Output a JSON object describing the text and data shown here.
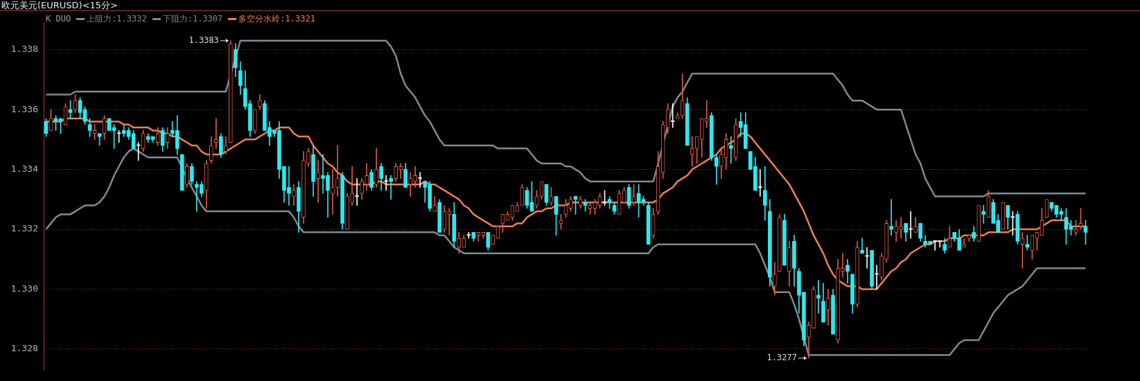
{
  "chart_data": {
    "type": "candlestick",
    "title": "欧元美元(EURUSD)<15分>",
    "legend_title": "K DUO",
    "legend": "top left",
    "grid": "y",
    "tick_labels": "y",
    "ylim": [
      1.3273,
      1.3389
    ],
    "yticks": [
      1.328,
      {
        "value": 1.33,
        "label": "1.330"
      },
      1.332,
      1.334,
      1.336,
      1.338
    ],
    "annotations": [
      "1.3383",
      "1.3277"
    ],
    "categories": [
      null,
      null,
      null,
      null,
      null,
      null,
      null,
      null,
      null,
      null,
      null,
      null,
      null,
      null,
      null,
      null,
      null,
      null,
      null,
      null,
      null,
      null,
      null,
      null,
      null,
      null,
      null,
      null,
      null,
      null,
      null,
      null,
      null,
      null,
      null,
      null,
      null,
      null,
      null,
      null,
      null,
      null,
      null,
      null,
      null,
      null,
      null,
      null,
      null,
      null,
      null,
      null,
      null,
      null,
      null,
      null,
      null,
      null,
      null,
      null,
      null,
      null,
      null,
      null,
      null,
      null,
      null,
      null,
      null,
      null,
      null,
      null,
      null,
      null,
      null,
      null,
      null,
      null,
      null,
      null,
      null,
      null,
      null,
      null,
      null,
      null,
      null,
      null,
      null,
      null,
      null,
      null,
      null,
      null,
      null,
      null,
      null,
      null,
      null,
      null,
      null,
      null,
      null,
      null,
      null,
      null,
      null,
      null,
      null,
      null,
      null,
      null,
      null,
      null,
      null,
      null,
      null,
      null,
      null,
      null,
      null,
      null,
      null,
      null,
      null,
      null,
      null,
      null,
      null,
      null,
      null,
      null,
      null,
      null,
      null,
      null,
      null,
      null,
      null,
      null,
      null,
      null,
      null,
      null,
      null,
      null,
      null,
      null,
      null,
      null,
      null,
      null,
      null,
      null,
      null,
      null,
      null,
      null,
      null,
      null,
      null,
      null,
      null,
      null,
      null,
      null,
      null,
      null,
      null,
      null,
      null,
      null,
      null,
      null,
      null,
      null,
      null,
      null,
      null,
      null,
      null,
      null,
      null,
      null,
      null,
      null,
      null,
      null,
      null,
      null,
      null,
      null,
      null,
      null,
      null,
      null,
      null,
      null,
      null,
      null,
      null,
      null,
      null,
      null,
      null,
      null,
      null,
      null,
      null,
      null,
      null,
      null,
      null,
      null,
      null
    ],
    "ohlc": [
      [
        1.3356,
        1.3357,
        1.3351,
        1.3352
      ],
      [
        1.3353,
        1.336,
        1.3353,
        1.3357
      ],
      [
        1.3357,
        1.3358,
        1.3353,
        1.3356
      ],
      [
        1.3357,
        1.3357,
        1.3352,
        1.3356
      ],
      [
        1.3355,
        1.3362,
        1.3355,
        1.3361
      ],
      [
        1.336,
        1.3363,
        1.3357,
        1.3359
      ],
      [
        1.336,
        1.3365,
        1.3359,
        1.3363
      ],
      [
        1.3363,
        1.3364,
        1.3357,
        1.3359
      ],
      [
        1.336,
        1.3361,
        1.3355,
        1.3356
      ],
      [
        1.3355,
        1.3357,
        1.3351,
        1.3353
      ],
      [
        1.3352,
        1.3355,
        1.335,
        1.3353
      ],
      [
        1.3352,
        1.3352,
        1.3348,
        1.3351
      ],
      [
        1.3352,
        1.3358,
        1.335,
        1.3357
      ],
      [
        1.3357,
        1.3357,
        1.3353,
        1.3353
      ],
      [
        1.3354,
        1.3355,
        1.3347,
        1.3353
      ],
      [
        1.3352,
        1.3353,
        1.3349,
        1.3352
      ],
      [
        1.3353,
        1.3355,
        1.3351,
        1.3352
      ],
      [
        1.3353,
        1.3354,
        1.335,
        1.3351
      ],
      [
        1.3352,
        1.3353,
        1.3347,
        1.3347
      ],
      [
        1.3348,
        1.3349,
        1.3343,
        1.3348
      ],
      [
        1.3347,
        1.3353,
        1.3346,
        1.3352
      ],
      [
        1.3351,
        1.3352,
        1.3349,
        1.335
      ],
      [
        1.3351,
        1.3351,
        1.3349,
        1.335
      ],
      [
        1.3349,
        1.3354,
        1.3348,
        1.3352
      ],
      [
        1.3353,
        1.3354,
        1.3346,
        1.3348
      ],
      [
        1.3349,
        1.3354,
        1.3347,
        1.3352
      ],
      [
        1.3353,
        1.3356,
        1.3351,
        1.3352
      ],
      [
        1.3353,
        1.3358,
        1.3345,
        1.3347
      ],
      [
        1.3345,
        1.3345,
        1.3333,
        1.3333
      ],
      [
        1.3335,
        1.3342,
        1.3334,
        1.3341
      ],
      [
        1.3341,
        1.3342,
        1.3335,
        1.3336
      ],
      [
        1.3335,
        1.3336,
        1.3326,
        1.3334
      ],
      [
        1.3335,
        1.3336,
        1.3331,
        1.3332
      ],
      [
        1.3333,
        1.3343,
        1.3327,
        1.3342
      ],
      [
        1.3343,
        1.3351,
        1.3342,
        1.3348
      ],
      [
        1.3349,
        1.3357,
        1.3347,
        1.335
      ],
      [
        1.3351,
        1.3352,
        1.3344,
        1.3345
      ],
      [
        1.3346,
        1.3351,
        1.3345,
        1.3348
      ],
      [
        1.3349,
        1.3383,
        1.3349,
        1.3382
      ],
      [
        1.338,
        1.3382,
        1.3371,
        1.3374
      ],
      [
        1.3373,
        1.3376,
        1.3365,
        1.3368
      ],
      [
        1.3367,
        1.3373,
        1.336,
        1.3361
      ],
      [
        1.3362,
        1.3363,
        1.3351,
        1.3353
      ],
      [
        1.3353,
        1.336,
        1.3352,
        1.336
      ],
      [
        1.3361,
        1.3365,
        1.336,
        1.3363
      ],
      [
        1.3362,
        1.3363,
        1.3353,
        1.3353
      ],
      [
        1.3354,
        1.3356,
        1.3348,
        1.3351
      ],
      [
        1.3353,
        1.3353,
        1.3351,
        1.3352
      ],
      [
        1.3353,
        1.3356,
        1.3337,
        1.334
      ],
      [
        1.3341,
        1.3341,
        1.3329,
        1.3333
      ],
      [
        1.3334,
        1.3341,
        1.3328,
        1.3332
      ],
      [
        1.3331,
        1.3335,
        1.3328,
        1.3333
      ],
      [
        1.3334,
        1.3336,
        1.3319,
        1.3326
      ],
      [
        1.3324,
        1.3346,
        1.3322,
        1.3343
      ],
      [
        1.3342,
        1.3347,
        1.3341,
        1.3346
      ],
      [
        1.3345,
        1.3348,
        1.3331,
        1.3336
      ],
      [
        1.3337,
        1.3343,
        1.3329,
        1.3339
      ],
      [
        1.3338,
        1.3345,
        1.3332,
        1.3337
      ],
      [
        1.3338,
        1.3339,
        1.3324,
        1.3333
      ],
      [
        1.3332,
        1.334,
        1.3325,
        1.3334
      ],
      [
        1.3334,
        1.3348,
        1.3331,
        1.3337
      ],
      [
        1.3338,
        1.3339,
        1.332,
        1.3322
      ],
      [
        1.332,
        1.3332,
        1.332,
        1.3331
      ],
      [
        1.3329,
        1.3341,
        1.3328,
        1.3332
      ],
      [
        1.3331,
        1.3337,
        1.3328,
        1.3331
      ],
      [
        1.3332,
        1.3337,
        1.333,
        1.3336
      ],
      [
        1.3335,
        1.3342,
        1.3333,
        1.3338
      ],
      [
        1.3339,
        1.334,
        1.3333,
        1.3334
      ],
      [
        1.3335,
        1.3347,
        1.3334,
        1.334
      ],
      [
        1.3341,
        1.3342,
        1.3333,
        1.3337
      ],
      [
        1.3336,
        1.3338,
        1.3333,
        1.3336
      ],
      [
        1.3337,
        1.3338,
        1.333,
        1.3336
      ],
      [
        1.3337,
        1.3342,
        1.3336,
        1.3341
      ],
      [
        1.334,
        1.3342,
        1.3337,
        1.3341
      ],
      [
        1.334,
        1.3342,
        1.3334,
        1.3334
      ],
      [
        1.3335,
        1.3339,
        1.3331,
        1.3337
      ],
      [
        1.3336,
        1.3341,
        1.3334,
        1.3338
      ],
      [
        1.3337,
        1.3339,
        1.3334,
        1.3337
      ],
      [
        1.3336,
        1.3336,
        1.3329,
        1.3334
      ],
      [
        1.3335,
        1.3336,
        1.3326,
        1.3327
      ],
      [
        1.3326,
        1.3331,
        1.3326,
        1.3328
      ],
      [
        1.3329,
        1.333,
        1.3319,
        1.3319
      ],
      [
        1.332,
        1.3328,
        1.3319,
        1.3326
      ],
      [
        1.3325,
        1.3327,
        1.3318,
        1.3326
      ],
      [
        1.3325,
        1.3329,
        1.3314,
        1.3316
      ],
      [
        1.3314,
        1.3319,
        1.3312,
        1.3317
      ],
      [
        1.3314,
        1.3318,
        1.3314,
        1.3317
      ],
      [
        1.3318,
        1.3319,
        1.3317,
        1.3318
      ],
      [
        1.3319,
        1.3319,
        1.3316,
        1.3317
      ],
      [
        1.3318,
        1.3319,
        1.3316,
        1.3319
      ],
      [
        1.3318,
        1.3319,
        1.3317,
        1.3319
      ],
      [
        1.3319,
        1.3319,
        1.3313,
        1.3314
      ],
      [
        1.3315,
        1.3318,
        1.3315,
        1.3318
      ],
      [
        1.3317,
        1.3321,
        1.3317,
        1.3321
      ],
      [
        1.3322,
        1.3325,
        1.3319,
        1.3325
      ],
      [
        1.3323,
        1.3326,
        1.3323,
        1.3325
      ],
      [
        1.3324,
        1.3328,
        1.3323,
        1.3328
      ],
      [
        1.3326,
        1.3329,
        1.3326,
        1.3328
      ],
      [
        1.3328,
        1.3335,
        1.3328,
        1.3334
      ],
      [
        1.3333,
        1.3334,
        1.3327,
        1.3328
      ],
      [
        1.3329,
        1.3336,
        1.3326,
        1.3326
      ],
      [
        1.3328,
        1.3333,
        1.3327,
        1.3331
      ],
      [
        1.3331,
        1.3336,
        1.333,
        1.3336
      ],
      [
        1.3335,
        1.3335,
        1.3328,
        1.3329
      ],
      [
        1.3329,
        1.3334,
        1.3328,
        1.3331
      ],
      [
        1.3331,
        1.3331,
        1.3318,
        1.3325
      ],
      [
        1.3322,
        1.3325,
        1.332,
        1.3323
      ],
      [
        1.3325,
        1.333,
        1.3324,
        1.3328
      ],
      [
        1.3327,
        1.3331,
        1.3326,
        1.333
      ],
      [
        1.3331,
        1.3331,
        1.3325,
        1.333
      ],
      [
        1.3328,
        1.3331,
        1.3327,
        1.333
      ],
      [
        1.3329,
        1.333,
        1.3326,
        1.3328
      ],
      [
        1.3327,
        1.3329,
        1.3325,
        1.3328
      ],
      [
        1.3327,
        1.333,
        1.3325,
        1.3329
      ],
      [
        1.3328,
        1.3332,
        1.3327,
        1.3331
      ],
      [
        1.3329,
        1.3333,
        1.3328,
        1.3329
      ],
      [
        1.333,
        1.3331,
        1.3327,
        1.3329
      ],
      [
        1.3328,
        1.3329,
        1.3325,
        1.3326
      ],
      [
        1.3325,
        1.3333,
        1.3325,
        1.3332
      ],
      [
        1.3329,
        1.3334,
        1.3329,
        1.3333
      ],
      [
        1.3334,
        1.3335,
        1.3327,
        1.3328
      ],
      [
        1.3329,
        1.3335,
        1.3328,
        1.3331
      ],
      [
        1.3332,
        1.3335,
        1.3324,
        1.3329
      ],
      [
        1.333,
        1.3331,
        1.3328,
        1.3329
      ],
      [
        1.3328,
        1.3329,
        1.3315,
        1.3315
      ],
      [
        1.3318,
        1.3327,
        1.3317,
        1.3325
      ],
      [
        1.3326,
        1.3346,
        1.3325,
        1.3341
      ],
      [
        1.3339,
        1.3356,
        1.3337,
        1.3355
      ],
      [
        1.3354,
        1.3362,
        1.3352,
        1.336
      ],
      [
        1.3356,
        1.3362,
        1.3354,
        1.3356
      ],
      [
        1.3357,
        1.3359,
        1.3357,
        1.3358
      ],
      [
        1.3358,
        1.3372,
        1.3357,
        1.3363
      ],
      [
        1.3362,
        1.3364,
        1.3348,
        1.3348
      ],
      [
        1.3345,
        1.3351,
        1.3341,
        1.3347
      ],
      [
        1.3347,
        1.3351,
        1.3342,
        1.3351
      ],
      [
        1.335,
        1.3357,
        1.3344,
        1.3357
      ],
      [
        1.3356,
        1.3363,
        1.3354,
        1.3357
      ],
      [
        1.3358,
        1.3359,
        1.3343,
        1.3344
      ],
      [
        1.3344,
        1.3345,
        1.3335,
        1.3341
      ],
      [
        1.3341,
        1.3347,
        1.3337,
        1.3345
      ],
      [
        1.3344,
        1.3352,
        1.334,
        1.335
      ],
      [
        1.3348,
        1.3351,
        1.3342,
        1.3347
      ],
      [
        1.3344,
        1.3357,
        1.3343,
        1.3355
      ],
      [
        1.3356,
        1.3359,
        1.3351,
        1.3354
      ],
      [
        1.3355,
        1.3359,
        1.3347,
        1.3347
      ],
      [
        1.3346,
        1.3346,
        1.334,
        1.334
      ],
      [
        1.3341,
        1.3344,
        1.3333,
        1.3333
      ],
      [
        1.3334,
        1.334,
        1.3331,
        1.3334
      ],
      [
        1.3333,
        1.3341,
        1.3323,
        1.3328
      ],
      [
        1.3326,
        1.333,
        1.3301,
        1.3304
      ],
      [
        1.3301,
        1.3309,
        1.3298,
        1.3305
      ],
      [
        1.3306,
        1.3325,
        1.3306,
        1.3324
      ],
      [
        1.3323,
        1.3325,
        1.3308,
        1.3308
      ],
      [
        1.3306,
        1.3316,
        1.3301,
        1.3314
      ],
      [
        1.3316,
        1.3318,
        1.3301,
        1.3307
      ],
      [
        1.3306,
        1.3307,
        1.3292,
        1.3298
      ],
      [
        1.3299,
        1.3299,
        1.3281,
        1.3283
      ],
      [
        1.3284,
        1.3289,
        1.3277,
        1.3288
      ],
      [
        1.3287,
        1.3301,
        1.3287,
        1.33
      ],
      [
        1.3298,
        1.3303,
        1.3292,
        1.3297
      ],
      [
        1.3296,
        1.3302,
        1.3289,
        1.3289
      ],
      [
        1.3293,
        1.33,
        1.3288,
        1.3297
      ],
      [
        1.3298,
        1.33,
        1.3285,
        1.3285
      ],
      [
        1.3283,
        1.331,
        1.3282,
        1.3307
      ],
      [
        1.3306,
        1.3312,
        1.3304,
        1.3307
      ],
      [
        1.3308,
        1.331,
        1.3302,
        1.3306
      ],
      [
        1.3305,
        1.3305,
        1.3292,
        1.3295
      ],
      [
        1.3295,
        1.3316,
        1.3294,
        1.3314
      ],
      [
        1.3313,
        1.3317,
        1.3312,
        1.3312
      ],
      [
        1.3311,
        1.3314,
        1.3307,
        1.3311
      ],
      [
        1.3313,
        1.3313,
        1.33,
        1.3301
      ],
      [
        1.3305,
        1.3308,
        1.33,
        1.3305
      ],
      [
        1.3304,
        1.3312,
        1.3303,
        1.3311
      ],
      [
        1.331,
        1.3323,
        1.3309,
        1.3322
      ],
      [
        1.3321,
        1.333,
        1.3318,
        1.332
      ],
      [
        1.3319,
        1.3323,
        1.3316,
        1.3321
      ],
      [
        1.332,
        1.3324,
        1.3317,
        1.3321
      ],
      [
        1.3322,
        1.3322,
        1.3316,
        1.3319
      ],
      [
        1.332,
        1.3326,
        1.3317,
        1.332
      ],
      [
        1.3319,
        1.3324,
        1.3319,
        1.3321
      ],
      [
        1.3322,
        1.3322,
        1.3316,
        1.3317
      ],
      [
        1.3316,
        1.3318,
        1.3314,
        1.3315
      ],
      [
        1.3316,
        1.3316,
        1.3315,
        1.3315
      ],
      [
        1.3316,
        1.3316,
        1.3313,
        1.3316
      ],
      [
        1.3316,
        1.3316,
        1.3314,
        1.3316
      ],
      [
        1.3315,
        1.3317,
        1.3312,
        1.3313
      ],
      [
        1.3314,
        1.3321,
        1.3314,
        1.3317
      ],
      [
        1.3319,
        1.3319,
        1.3316,
        1.3317
      ],
      [
        1.3317,
        1.332,
        1.3313,
        1.3313
      ],
      [
        1.3314,
        1.3317,
        1.3314,
        1.3315
      ],
      [
        1.3317,
        1.3318,
        1.3316,
        1.3318
      ],
      [
        1.3319,
        1.3321,
        1.3316,
        1.3317
      ],
      [
        1.3316,
        1.3328,
        1.3316,
        1.3328
      ],
      [
        1.3326,
        1.3328,
        1.3322,
        1.3325
      ],
      [
        1.3324,
        1.3333,
        1.3324,
        1.3331
      ],
      [
        1.3329,
        1.333,
        1.3322,
        1.3322
      ],
      [
        1.3323,
        1.3325,
        1.3319,
        1.3319
      ],
      [
        1.332,
        1.3329,
        1.332,
        1.3329
      ],
      [
        1.3328,
        1.3328,
        1.332,
        1.3324
      ],
      [
        1.3324,
        1.3326,
        1.3318,
        1.3324
      ],
      [
        1.3325,
        1.3326,
        1.3315,
        1.3316
      ],
      [
        1.3315,
        1.3319,
        1.3307,
        1.3317
      ],
      [
        1.3315,
        1.3318,
        1.3313,
        1.3314
      ],
      [
        1.3313,
        1.3318,
        1.331,
        1.3318
      ],
      [
        1.3317,
        1.3319,
        1.3313,
        1.3319
      ],
      [
        1.3318,
        1.3327,
        1.3318,
        1.3323
      ],
      [
        1.3324,
        1.333,
        1.3324,
        1.333
      ],
      [
        1.3329,
        1.3329,
        1.3326,
        1.3327
      ],
      [
        1.3328,
        1.3328,
        1.3324,
        1.3325
      ],
      [
        1.3326,
        1.3327,
        1.3323,
        1.3325
      ],
      [
        1.3324,
        1.3327,
        1.3315,
        1.332
      ],
      [
        1.3321,
        1.3323,
        1.3318,
        1.332
      ],
      [
        1.3319,
        1.3323,
        1.3318,
        1.332
      ],
      [
        1.3321,
        1.3327,
        1.332,
        1.3322
      ],
      [
        1.3321,
        1.3323,
        1.3315,
        1.3319
      ]
    ],
    "colors": [
      "#2ee8f0",
      "#e05a46",
      "#2ee8f0",
      "#2ee8f0",
      "#e05a46",
      "#2ee8f0",
      "#e05a46",
      "#2ee8f0",
      "#2ee8f0",
      "#2ee8f0",
      "#e05a46",
      "#2ee8f0",
      "#e05a46",
      "#2ee8f0",
      "#2ee8f0",
      "#ffffff",
      "#2ee8f0",
      "#2ee8f0",
      "#2ee8f0",
      "#ffffff",
      "#e05a46",
      "#2ee8f0",
      "#2ee8f0",
      "#e05a46",
      "#2ee8f0",
      "#e05a46",
      "#2ee8f0",
      "#2ee8f0",
      "#2ee8f0",
      "#e05a46",
      "#2ee8f0",
      "#2ee8f0",
      "#2ee8f0",
      "#e05a46",
      "#e05a46",
      "#e05a46",
      "#2ee8f0",
      "#e05a46",
      "#e05a46",
      "#2ee8f0",
      "#2ee8f0",
      "#2ee8f0",
      "#2ee8f0",
      "#e05a46",
      "#e05a46",
      "#2ee8f0",
      "#2ee8f0",
      "#2ee8f0",
      "#2ee8f0",
      "#2ee8f0",
      "#2ee8f0",
      "#e05a46",
      "#2ee8f0",
      "#e05a46",
      "#e05a46",
      "#2ee8f0",
      "#e05a46",
      "#2ee8f0",
      "#2ee8f0",
      "#e05a46",
      "#e05a46",
      "#2ee8f0",
      "#e05a46",
      "#e05a46",
      "#ffffff",
      "#e05a46",
      "#e05a46",
      "#2ee8f0",
      "#e05a46",
      "#2ee8f0",
      "#ffffff",
      "#2ee8f0",
      "#e05a46",
      "#e05a46",
      "#2ee8f0",
      "#e05a46",
      "#e05a46",
      "#ffffff",
      "#2ee8f0",
      "#2ee8f0",
      "#e05a46",
      "#2ee8f0",
      "#e05a46",
      "#e05a46",
      "#2ee8f0",
      "#e05a46",
      "#e05a46",
      "#ffffff",
      "#2ee8f0",
      "#e05a46",
      "#e05a46",
      "#2ee8f0",
      "#e05a46",
      "#e05a46",
      "#e05a46",
      "#e05a46",
      "#e05a46",
      "#e05a46",
      "#e05a46",
      "#2ee8f0",
      "#2ee8f0",
      "#e05a46",
      "#e05a46",
      "#2ee8f0",
      "#e05a46",
      "#2ee8f0",
      "#e05a46",
      "#e05a46",
      "#e05a46",
      "#2ee8f0",
      "#e05a46",
      "#2ee8f0",
      "#e05a46",
      "#e05a46",
      "#e05a46",
      "#ffffff",
      "#2ee8f0",
      "#2ee8f0",
      "#e05a46",
      "#e05a46",
      "#2ee8f0",
      "#e05a46",
      "#2ee8f0",
      "#2ee8f0",
      "#2ee8f0",
      "#e05a46",
      "#e05a46",
      "#e05a46",
      "#e05a46",
      "#ffffff",
      "#e05a46",
      "#e05a46",
      "#2ee8f0",
      "#e05a46",
      "#e05a46",
      "#e05a46",
      "#e05a46",
      "#2ee8f0",
      "#2ee8f0",
      "#e05a46",
      "#e05a46",
      "#2ee8f0",
      "#e05a46",
      "#2ee8f0",
      "#2ee8f0",
      "#2ee8f0",
      "#2ee8f0",
      "#ffffff",
      "#2ee8f0",
      "#2ee8f0",
      "#e05a46",
      "#e05a46",
      "#2ee8f0",
      "#e05a46",
      "#2ee8f0",
      "#2ee8f0",
      "#2ee8f0",
      "#e05a46",
      "#e05a46",
      "#2ee8f0",
      "#2ee8f0",
      "#e05a46",
      "#2ee8f0",
      "#e05a46",
      "#e05a46",
      "#2ee8f0",
      "#2ee8f0",
      "#e05a46",
      "#2ee8f0",
      "#ffffff",
      "#2ee8f0",
      "#ffffff",
      "#e05a46",
      "#e05a46",
      "#2ee8f0",
      "#e05a46",
      "#e05a46",
      "#2ee8f0",
      "#ffffff",
      "#e05a46",
      "#2ee8f0",
      "#2ee8f0",
      "#2ee8f0",
      "#ffffff",
      "#ffffff",
      "#2ee8f0",
      "#e05a46",
      "#2ee8f0",
      "#2ee8f0",
      "#e05a46",
      "#e05a46",
      "#2ee8f0",
      "#e05a46",
      "#2ee8f0",
      "#e05a46",
      "#2ee8f0",
      "#2ee8f0",
      "#e05a46",
      "#2ee8f0",
      "#ffffff",
      "#2ee8f0",
      "#e05a46",
      "#2ee8f0",
      "#e05a46",
      "#e05a46",
      "#e05a46",
      "#e05a46",
      "#2ee8f0",
      "#2ee8f0",
      "#2ee8f0",
      "#2ee8f0",
      "#2ee8f0",
      "#e05a46",
      "#e05a46",
      "#2ee8f0"
    ],
    "series": [
      {
        "type": "line",
        "name": "上阻力:1.3332",
        "color": "#7f8c94",
        "values": [
          1.3365,
          1.3365,
          1.3365,
          1.3365,
          1.3365,
          1.3365,
          1.3366,
          1.3366,
          1.3366,
          1.3366,
          1.3366,
          1.3366,
          1.3366,
          1.3366,
          1.3366,
          1.3366,
          1.3366,
          1.3366,
          1.3366,
          1.3366,
          1.3366,
          1.3366,
          1.3366,
          1.3366,
          1.3366,
          1.3366,
          1.3366,
          1.3366,
          1.3366,
          1.3366,
          1.3366,
          1.3366,
          1.3366,
          1.3366,
          1.3366,
          1.3366,
          1.3366,
          1.3366,
          null,
          null,
          1.3383,
          1.3383,
          1.3383,
          1.3383,
          1.3383,
          1.3383,
          1.3383,
          1.3383,
          1.3383,
          1.3383,
          1.3383,
          1.3383,
          1.3383,
          1.3383,
          1.3383,
          1.3383,
          1.3383,
          1.3383,
          1.3383,
          1.3383,
          1.3383,
          1.3383,
          1.3383,
          1.3383,
          1.3383,
          1.3383,
          1.3383,
          1.3383,
          1.3383,
          1.3383,
          1.3383,
          1.3381,
          1.3378,
          1.3372,
          1.3368,
          1.3366,
          1.3364,
          1.3361,
          1.3358,
          1.3356,
          1.3353,
          1.335,
          1.3348,
          1.3348,
          1.3348,
          1.3348,
          1.3348,
          1.3348,
          1.3348,
          1.3348,
          1.3348,
          1.3348,
          1.3348,
          1.3347,
          1.3347,
          1.3347,
          1.3347,
          1.3347,
          1.3347,
          1.3347,
          1.3345,
          1.3343,
          1.3342,
          1.3342,
          1.3342,
          1.3342,
          1.3342,
          1.3341,
          1.3341,
          1.334,
          1.3339,
          1.3337,
          1.3336,
          1.3336,
          1.3336,
          1.3336,
          1.3336,
          1.3336,
          1.3336,
          1.3336,
          1.3336,
          1.3336,
          1.3336,
          1.3336,
          1.3336,
          1.3336,
          1.3342,
          null,
          null,
          1.3361,
          1.3364,
          1.3366,
          1.3369,
          1.3372,
          1.3372,
          1.3372,
          1.3372,
          1.3372,
          1.3372,
          1.3372,
          1.3372,
          1.3372,
          1.3372,
          1.3372,
          1.3372,
          1.3372,
          1.3372,
          1.3372,
          1.3372,
          1.3372,
          1.3372,
          1.3372,
          1.3372,
          1.3372,
          1.3372,
          1.3372,
          1.3372,
          1.3372,
          1.3372,
          1.3372,
          1.3372,
          1.3372,
          1.3372,
          1.337,
          1.3368,
          1.3365,
          1.3363,
          1.3363,
          1.3363,
          1.3362,
          1.3361,
          1.336,
          1.336,
          1.336,
          1.336,
          1.336,
          1.336,
          1.3355,
          1.335,
          1.3345,
          1.3342,
          1.3337,
          1.3334,
          1.3331,
          1.3331,
          1.3331,
          1.3331,
          1.3331,
          1.3331,
          1.3331,
          1.3331,
          1.3331,
          1.3331,
          1.3331,
          1.3332,
          1.3332,
          1.3332,
          1.3332,
          1.3332,
          1.3332,
          1.3332,
          1.3332,
          1.3332,
          1.3332,
          1.3332,
          1.3332,
          1.3332,
          1.3332,
          1.3332,
          1.3332,
          1.3332,
          1.3332,
          1.3332,
          1.3332,
          1.3332
        ]
      },
      {
        "type": "line",
        "name": "下阻力:1.3307",
        "color": "#7f8c94",
        "values": [
          1.332,
          1.3322,
          1.3324,
          1.3325,
          1.3325,
          1.3325,
          1.3326,
          1.3327,
          1.3328,
          1.3328,
          1.3328,
          1.3329,
          1.3331,
          1.3334,
          1.3338,
          1.3341,
          1.3344,
          1.3346,
          1.3347,
          1.3346,
          1.3345,
          1.3344,
          1.3344,
          1.3344,
          1.3344,
          1.3344,
          1.3344,
          1.3344,
          null,
          1.3337,
          1.3334,
          1.3331,
          1.3328,
          1.3326,
          1.3326,
          1.3326,
          1.3326,
          1.3326,
          1.3326,
          1.3326,
          1.3326,
          1.3326,
          1.3326,
          1.3326,
          1.3326,
          1.3326,
          1.3326,
          1.3326,
          1.3326,
          1.3326,
          1.3326,
          1.3324,
          1.3321,
          1.3319,
          1.3319,
          1.3319,
          1.3319,
          1.3319,
          1.3319,
          1.3319,
          1.3319,
          1.3319,
          1.3319,
          1.3319,
          1.3319,
          1.3319,
          1.3319,
          1.3319,
          1.3319,
          1.3319,
          1.3319,
          1.3319,
          1.3319,
          1.3319,
          1.3319,
          1.3319,
          1.3319,
          1.3319,
          1.3319,
          1.3319,
          1.3319,
          1.3318,
          1.3318,
          1.3316,
          1.3314,
          1.3313,
          1.3312,
          1.3312,
          1.3312,
          1.3312,
          1.3312,
          1.3312,
          1.3312,
          1.3312,
          1.3312,
          1.3312,
          1.3312,
          1.3312,
          1.3312,
          1.3312,
          1.3312,
          1.3312,
          1.3312,
          1.3312,
          1.3312,
          1.3312,
          1.3312,
          1.3312,
          1.3312,
          1.3312,
          1.3312,
          1.3312,
          1.3312,
          1.3312,
          1.3312,
          1.3312,
          1.3312,
          1.3312,
          1.3312,
          1.3312,
          1.3312,
          1.3312,
          1.3312,
          1.3312,
          1.3312,
          1.3314,
          1.3315,
          1.3315,
          1.3315,
          1.3315,
          1.3315,
          1.3315,
          1.3315,
          1.3315,
          1.3315,
          1.3315,
          1.3315,
          1.3315,
          1.3315,
          1.3315,
          1.3315,
          1.3315,
          1.3315,
          1.3315,
          1.3315,
          1.3315,
          1.3315,
          1.3312,
          1.3308,
          1.3304,
          1.3299,
          1.3299,
          1.3299,
          1.3299,
          1.3295,
          1.329,
          null,
          1.3278,
          1.3278,
          1.3278,
          1.3278,
          1.3278,
          1.3278,
          1.3278,
          1.3278,
          1.3278,
          1.3278,
          1.3278,
          1.3278,
          1.3278,
          1.3278,
          1.3278,
          1.3278,
          1.3278,
          1.3278,
          1.3278,
          1.3278,
          1.3278,
          1.3278,
          1.3278,
          1.3278,
          1.3278,
          1.3278,
          1.3278,
          1.3278,
          1.3278,
          1.3278,
          1.328,
          1.3282,
          1.3283,
          1.3283,
          1.3283,
          1.3283,
          1.3286,
          1.3289,
          1.3292,
          1.3294,
          1.3296,
          1.3298,
          1.3299,
          1.33,
          1.3301,
          1.3303,
          1.3305,
          1.3307,
          1.3307,
          1.3307,
          1.3307,
          1.3307,
          1.3307,
          1.3307,
          1.3307,
          1.3307,
          1.3307,
          1.3307
        ]
      },
      {
        "type": "line",
        "name": "多空分水岭:1.3321",
        "color": "#f08050",
        "values": [
          1.3356,
          1.3356,
          1.3356,
          1.3356,
          1.3357,
          1.3357,
          1.3357,
          1.3357,
          1.3357,
          1.3356,
          1.3356,
          1.3356,
          1.3356,
          1.3356,
          1.3356,
          1.3356,
          1.3355,
          1.3355,
          1.3354,
          1.3354,
          1.3354,
          1.3354,
          1.3353,
          1.3353,
          1.3352,
          1.3352,
          1.3351,
          1.3351,
          1.335,
          1.3349,
          1.3348,
          1.3348,
          1.3346,
          1.3345,
          1.3345,
          1.3345,
          1.3345,
          1.3346,
          1.3347,
          1.3348,
          1.3349,
          1.335,
          1.335,
          1.335,
          1.3351,
          1.3352,
          1.3353,
          1.3353,
          1.3354,
          1.3354,
          1.3354,
          1.3352,
          1.3351,
          1.3351,
          1.3351,
          1.3348,
          1.3346,
          1.3344,
          1.3342,
          1.3341,
          1.3339,
          1.3338,
          1.3336,
          1.3335,
          1.3335,
          1.3335,
          1.3335,
          1.3335,
          1.3336,
          1.3336,
          1.3335,
          1.3335,
          1.3335,
          1.3335,
          1.3335,
          1.3335,
          1.3335,
          1.3335,
          1.3336,
          1.3335,
          1.3335,
          1.3334,
          1.3333,
          1.3332,
          1.3331,
          1.333,
          1.3328,
          1.3327,
          1.3325,
          1.3324,
          1.3323,
          1.3322,
          1.3321,
          1.3321,
          1.3321,
          1.3321,
          1.3321,
          1.3322,
          1.3322,
          1.3324,
          1.3325,
          1.3326,
          1.3326,
          1.3327,
          1.3327,
          1.3328,
          1.3328,
          1.3328,
          1.3329,
          1.3329,
          1.3329,
          1.3329,
          1.3329,
          1.3329,
          1.3329,
          1.3329,
          1.3329,
          1.3329,
          1.3329,
          1.3329,
          1.3329,
          1.3329,
          1.3329,
          1.3329,
          1.3329,
          1.3329,
          1.333,
          1.3332,
          1.3333,
          1.3334,
          1.3336,
          1.3337,
          1.3338,
          1.334,
          1.3341,
          1.3342,
          1.3343,
          1.3344,
          1.3345,
          1.3347,
          1.3348,
          1.3349,
          1.335,
          1.3352,
          1.3352,
          1.3351,
          1.3349,
          1.3347,
          1.3345,
          1.3343,
          1.3341,
          1.3339,
          1.3337,
          1.3335,
          1.3332,
          1.3329,
          1.3326,
          1.3322,
          1.3318,
          1.3315,
          1.3312,
          1.3308,
          1.3305,
          1.3303,
          1.3302,
          1.3301,
          1.3301,
          1.3301,
          1.33,
          1.33,
          1.33,
          1.33,
          1.3302,
          1.3304,
          1.3306,
          1.3307,
          1.3309,
          1.331,
          1.3312,
          1.3313,
          1.3314,
          1.3315,
          1.3315,
          1.3316,
          1.3316,
          1.3316,
          1.3317,
          1.3317,
          1.3317,
          1.3318,
          1.3318,
          1.3318,
          1.3318,
          1.3318,
          1.3319,
          1.3319,
          1.3319,
          1.3319,
          1.3319,
          1.332,
          1.332,
          1.332,
          1.332,
          1.332,
          1.332,
          1.3321,
          1.3322,
          1.3323,
          1.3323,
          1.3323,
          1.3323,
          1.3321,
          1.3321,
          1.3321,
          1.3321
        ]
      }
    ]
  }
}
